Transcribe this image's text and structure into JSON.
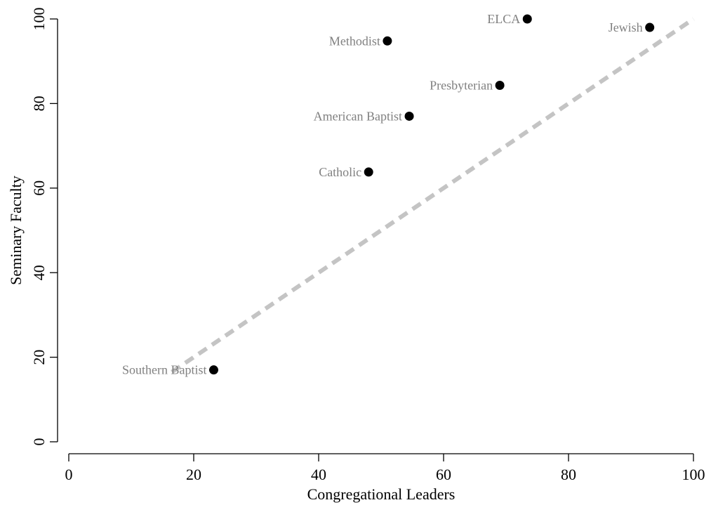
{
  "chart_data": {
    "type": "scatter",
    "title": "",
    "xlabel": "Congregational Leaders",
    "ylabel": "Seminary Faculty",
    "xlim": [
      0,
      100
    ],
    "ylim": [
      0,
      100
    ],
    "x_ticks": [
      0,
      20,
      40,
      60,
      80,
      100
    ],
    "y_ticks": [
      0,
      20,
      40,
      60,
      80,
      100
    ],
    "grid": false,
    "points": [
      {
        "label": "ELCA",
        "x": 73.4,
        "y": 100
      },
      {
        "label": "Jewish",
        "x": 93,
        "y": 98
      },
      {
        "label": "Methodist",
        "x": 51,
        "y": 94.8
      },
      {
        "label": "Presbyterian",
        "x": 69,
        "y": 84.3
      },
      {
        "label": "American Baptist",
        "x": 54.5,
        "y": 77
      },
      {
        "label": "Catholic",
        "x": 48,
        "y": 63.8
      },
      {
        "label": "Southern Baptist",
        "x": 23.2,
        "y": 17
      }
    ],
    "reference_line": {
      "style": "dashed",
      "color": "#c4c4c4",
      "x": [
        16.5,
        100
      ],
      "y": [
        16.5,
        100
      ]
    }
  }
}
